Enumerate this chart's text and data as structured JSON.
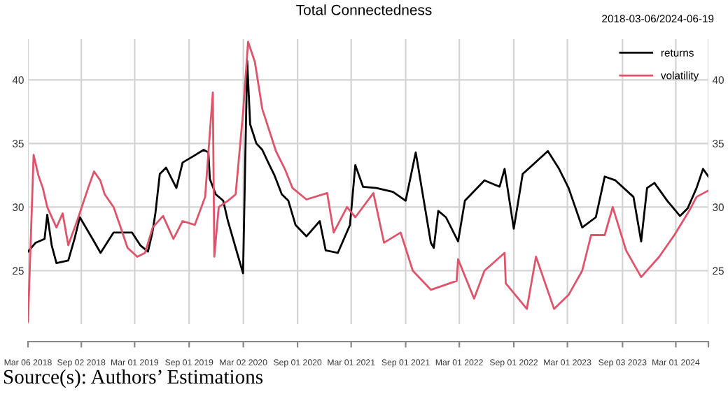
{
  "chart_data": {
    "type": "line",
    "title": "Total Connectedness",
    "subtitle": "2018-03-06/2024-06-19",
    "annotations": [
      "Source(s): Authors’ Estimations"
    ],
    "series": [
      {
        "name": "returns",
        "color": "#000000",
        "x": [
          "2018-03-06",
          "2018-04-01",
          "2018-05-01",
          "2018-05-10",
          "2018-05-25",
          "2018-06-10",
          "2018-07-20",
          "2018-08-10",
          "2018-08-28",
          "2018-10-10",
          "2018-11-06",
          "2018-12-20",
          "2019-02-20",
          "2019-03-20",
          "2019-04-15",
          "2019-04-30",
          "2019-05-10",
          "2019-05-25",
          "2019-06-15",
          "2019-07-20",
          "2019-08-10",
          "2019-09-15",
          "2019-10-20",
          "2019-11-05",
          "2019-11-10",
          "2019-11-30",
          "2019-12-25",
          "2020-01-10",
          "2020-02-10",
          "2020-03-01",
          "2020-03-15",
          "2020-03-25",
          "2020-04-15",
          "2020-05-05",
          "2020-05-25",
          "2020-06-15",
          "2020-07-10",
          "2020-08-01",
          "2020-08-25",
          "2020-10-01",
          "2020-11-15",
          "2020-12-05",
          "2021-01-15",
          "2021-02-25",
          "2021-03-15",
          "2021-04-10",
          "2021-05-25",
          "2021-07-20",
          "2021-09-01",
          "2021-10-05",
          "2021-11-25",
          "2021-12-05",
          "2021-12-20",
          "2022-01-15",
          "2022-02-25",
          "2022-03-20",
          "2022-05-25",
          "2022-07-15",
          "2022-08-01",
          "2022-09-01",
          "2022-10-01",
          "2022-12-25",
          "2023-02-01",
          "2023-03-05",
          "2023-04-20",
          "2023-06-05",
          "2023-07-05",
          "2023-08-10",
          "2023-10-10",
          "2023-11-05",
          "2023-11-25",
          "2023-12-20",
          "2024-02-01",
          "2024-03-15",
          "2024-04-10",
          "2024-05-10",
          "2024-06-01",
          "2024-06-19"
        ],
        "values": [
          26.5,
          27.2,
          27.5,
          29.4,
          27,
          25.6,
          25.8,
          27.5,
          29.2,
          27.5,
          26.4,
          28,
          28,
          27,
          26.5,
          28,
          29.5,
          32.6,
          33.1,
          31.5,
          33.5,
          34,
          34.5,
          34.3,
          32.2,
          31,
          30.5,
          28.9,
          26.4,
          24.8,
          41.5,
          36.5,
          35,
          34.5,
          33.5,
          32.5,
          31,
          30.5,
          28.6,
          27.7,
          28.9,
          26.6,
          26.4,
          28.6,
          33.3,
          31.6,
          31.5,
          31.2,
          30.5,
          34.3,
          27.2,
          26.8,
          29.7,
          29.2,
          27.3,
          30.5,
          32.1,
          31.6,
          33,
          28.3,
          32.6,
          34.4,
          33,
          31.5,
          28.4,
          29.2,
          32.4,
          32.1,
          30.8,
          27.3,
          31.5,
          31.9,
          30.5,
          29.3,
          29.9,
          31.5,
          33,
          32.4
        ]
      },
      {
        "name": "volatility",
        "color": "#df536b",
        "x": [
          "2018-03-06",
          "2018-03-25",
          "2018-04-10",
          "2018-04-25",
          "2018-05-10",
          "2018-06-10",
          "2018-07-01",
          "2018-07-20",
          "2018-08-20",
          "2018-09-25",
          "2018-10-15",
          "2018-11-05",
          "2018-11-20",
          "2018-12-20",
          "2019-01-10",
          "2019-02-05",
          "2019-03-10",
          "2019-04-05",
          "2019-05-01",
          "2019-06-05",
          "2019-07-10",
          "2019-08-10",
          "2019-09-20",
          "2019-10-25",
          "2019-11-20",
          "2019-11-25",
          "2019-12-10",
          "2020-01-10",
          "2020-02-05",
          "2020-03-01",
          "2020-03-18",
          "2020-04-10",
          "2020-05-05",
          "2020-06-20",
          "2020-07-20",
          "2020-08-15",
          "2020-10-01",
          "2020-12-10",
          "2021-01-01",
          "2021-02-15",
          "2021-03-15",
          "2021-05-15",
          "2021-06-20",
          "2021-08-15",
          "2021-09-25",
          "2021-11-25",
          "2022-02-20",
          "2022-02-25",
          "2022-04-20",
          "2022-05-25",
          "2022-08-01",
          "2022-08-05",
          "2022-10-15",
          "2022-11-15",
          "2023-01-15",
          "2023-03-05",
          "2023-04-20",
          "2023-05-20",
          "2023-07-05",
          "2023-08-01",
          "2023-09-15",
          "2023-11-05",
          "2024-01-05",
          "2024-02-25",
          "2024-04-15",
          "2024-05-10",
          "2024-06-19"
        ],
        "values": [
          21,
          34.1,
          32.5,
          31.5,
          30,
          28.4,
          29.5,
          27,
          29,
          31.5,
          32.8,
          32.1,
          31,
          30,
          28.6,
          26.8,
          26.1,
          26.4,
          28.4,
          29.3,
          27.5,
          28.9,
          28.6,
          30.8,
          39,
          26.1,
          30,
          30.5,
          31,
          37.4,
          43,
          41.4,
          37.7,
          34.4,
          33,
          31.5,
          30.6,
          31.1,
          28,
          30,
          29.2,
          31.1,
          27.2,
          28,
          25,
          23.5,
          24.2,
          25.9,
          22.8,
          25,
          26.4,
          24,
          22,
          26.1,
          22,
          23.1,
          25,
          27.8,
          27.8,
          30,
          26.6,
          24.5,
          26.1,
          27.8,
          29.7,
          30.8,
          31.3
        ]
      }
    ],
    "xlim": [
      "2018-03-06",
      "2024-06-19"
    ],
    "xticks": [
      {
        "value": "2018-03-06",
        "label": "Mar 06 2018"
      },
      {
        "value": "2018-09-02",
        "label": "Sep 02 2018"
      },
      {
        "value": "2019-03-01",
        "label": "Mar 01 2019"
      },
      {
        "value": "2019-09-01",
        "label": "Sep 01 2019"
      },
      {
        "value": "2020-03-02",
        "label": "Mar 02 2020"
      },
      {
        "value": "2020-09-01",
        "label": "Sep 01 2020"
      },
      {
        "value": "2021-03-01",
        "label": "Mar 01 2021"
      },
      {
        "value": "2021-09-01",
        "label": "Sep 01 2021"
      },
      {
        "value": "2022-03-01",
        "label": "Mar 01 2022"
      },
      {
        "value": "2022-09-01",
        "label": "Sep 01 2022"
      },
      {
        "value": "2023-03-01",
        "label": "Mar 01 2023"
      },
      {
        "value": "2023-09-03",
        "label": "Sep 03 2023"
      },
      {
        "value": "2024-03-01",
        "label": "Mar 01 2024"
      },
      {
        "value": "2024-06-19",
        "label": null
      }
    ],
    "ylim": [
      20.8,
      43.2
    ],
    "yticks": [
      25,
      30,
      35,
      40
    ],
    "y2lim": [
      20.8,
      43.2
    ],
    "y2ticks": [
      25,
      30,
      35,
      40
    ],
    "grid": true,
    "legend": "top right",
    "line_style": "solid",
    "marker": "none"
  }
}
